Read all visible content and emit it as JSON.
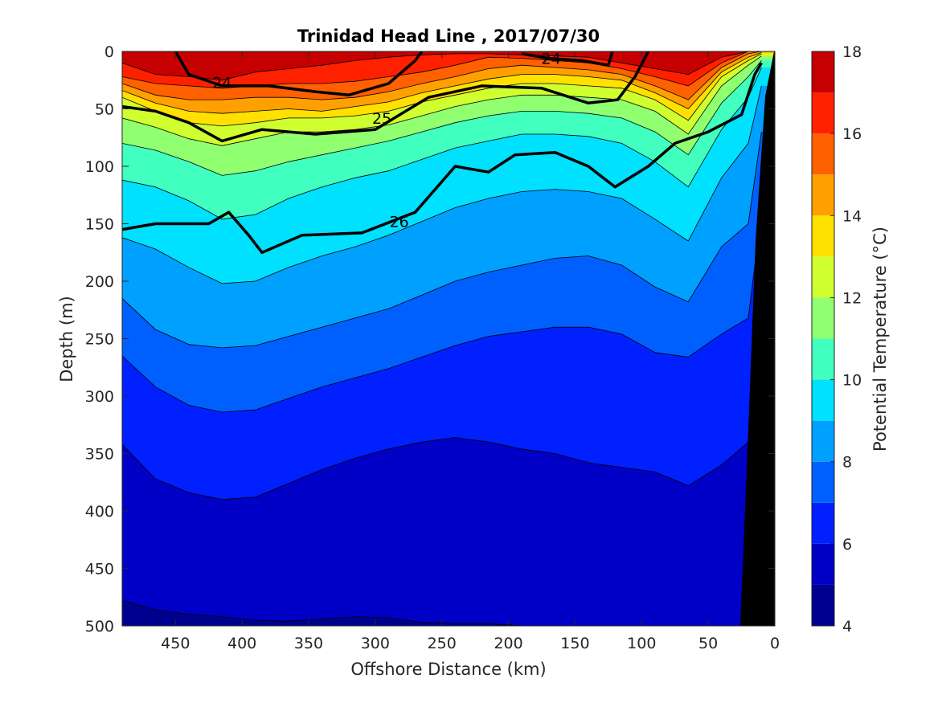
{
  "chart_data": {
    "type": "contour",
    "title": "Trinidad Head Line , 2017/07/30",
    "xlabel": "Offshore Distance (km)",
    "ylabel": "Depth (m)",
    "colorbar_label": "Potential Temperature (°C)",
    "x_reversed": true,
    "y_reversed": true,
    "xlim": [
      0,
      490
    ],
    "ylim": [
      0,
      500
    ],
    "x_ticks": [
      "450",
      "400",
      "350",
      "300",
      "250",
      "200",
      "150",
      "100",
      "50",
      "0"
    ],
    "y_ticks": [
      "0",
      "50",
      "100",
      "150",
      "200",
      "250",
      "300",
      "350",
      "400",
      "450",
      "500"
    ],
    "colorbar_ticks": [
      "4",
      "6",
      "8",
      "10",
      "12",
      "14",
      "16",
      "18"
    ],
    "colorbar_range": [
      4,
      18
    ],
    "colormap": [
      "#00008f",
      "#0000c6",
      "#0020ff",
      "#0060ff",
      "#00a0ff",
      "#00e0ff",
      "#40ffbf",
      "#90ff70",
      "#d0ff30",
      "#ffe000",
      "#ffa000",
      "#ff6000",
      "#ff2000",
      "#c60000"
    ],
    "temperature_levels": [
      4,
      5,
      6,
      7,
      8,
      9,
      10,
      11,
      12,
      13,
      14,
      15,
      16,
      17,
      18
    ],
    "temperature_boundaries": [
      {
        "value": 17,
        "depth": [
          10,
          20,
          22,
          25,
          18,
          15,
          12,
          8,
          5,
          3,
          2,
          2,
          3,
          4,
          5,
          10,
          15,
          20,
          5,
          0,
          0
        ]
      },
      {
        "value": 16,
        "depth": [
          22,
          28,
          30,
          32,
          30,
          28,
          28,
          26,
          22,
          18,
          12,
          5,
          6,
          8,
          10,
          15,
          22,
          30,
          10,
          0,
          0
        ]
      },
      {
        "value": 15,
        "depth": [
          28,
          38,
          42,
          42,
          40,
          40,
          42,
          40,
          35,
          28,
          22,
          15,
          12,
          14,
          16,
          20,
          30,
          42,
          14,
          2,
          0
        ]
      },
      {
        "value": 14,
        "depth": [
          34,
          45,
          52,
          54,
          52,
          50,
          52,
          48,
          44,
          36,
          30,
          24,
          20,
          20,
          22,
          25,
          36,
          50,
          18,
          5,
          1
        ]
      },
      {
        "value": 13,
        "depth": [
          40,
          52,
          62,
          65,
          62,
          58,
          58,
          56,
          52,
          44,
          38,
          32,
          28,
          28,
          30,
          32,
          42,
          60,
          22,
          8,
          2
        ]
      },
      {
        "value": 12,
        "depth": [
          58,
          66,
          76,
          82,
          76,
          70,
          70,
          68,
          64,
          56,
          48,
          42,
          38,
          38,
          40,
          42,
          52,
          72,
          30,
          12,
          4
        ]
      },
      {
        "value": 11,
        "depth": [
          80,
          86,
          96,
          108,
          104,
          96,
          90,
          84,
          78,
          70,
          62,
          56,
          52,
          52,
          54,
          58,
          70,
          90,
          45,
          22,
          8
        ]
      },
      {
        "value": 10,
        "depth": [
          112,
          118,
          130,
          146,
          142,
          128,
          118,
          110,
          104,
          94,
          84,
          78,
          72,
          72,
          74,
          80,
          96,
          118,
          68,
          40,
          14
        ]
      },
      {
        "value": 9,
        "depth": [
          162,
          172,
          188,
          202,
          200,
          188,
          178,
          170,
          160,
          148,
          136,
          128,
          122,
          120,
          122,
          128,
          146,
          165,
          110,
          80,
          30
        ]
      },
      {
        "value": 8,
        "depth": [
          215,
          242,
          255,
          258,
          256,
          248,
          240,
          232,
          224,
          212,
          200,
          192,
          186,
          180,
          178,
          186,
          205,
          218,
          170,
          150,
          70
        ]
      },
      {
        "value": 7,
        "depth": [
          265,
          292,
          308,
          314,
          312,
          302,
          292,
          284,
          276,
          266,
          256,
          248,
          244,
          240,
          240,
          246,
          262,
          266,
          246,
          232,
          140
        ]
      },
      {
        "value": 6,
        "depth": [
          342,
          372,
          384,
          390,
          388,
          376,
          364,
          354,
          346,
          340,
          336,
          340,
          346,
          350,
          358,
          362,
          366,
          378,
          360,
          340,
          260
        ]
      },
      {
        "value": 5,
        "depth": [
          478,
          486,
          490,
          492,
          495,
          496,
          494,
          492,
          493,
          497,
          498,
          498,
          500,
          500,
          500,
          500,
          500,
          500,
          500,
          500,
          500
        ]
      }
    ],
    "x_grid_km": [
      490,
      465,
      440,
      415,
      390,
      365,
      340,
      315,
      290,
      265,
      240,
      215,
      190,
      165,
      140,
      115,
      90,
      65,
      40,
      20,
      10
    ],
    "density_contours": [
      {
        "label": "24",
        "bold": true,
        "points": [
          [
            450,
            0
          ],
          [
            440,
            20
          ],
          [
            415,
            30
          ],
          [
            380,
            30
          ],
          [
            345,
            35
          ],
          [
            320,
            38
          ],
          [
            290,
            28
          ],
          [
            270,
            8
          ],
          [
            265,
            0
          ]
        ],
        "label_at": [
          415,
          27
        ]
      },
      {
        "label": "24",
        "bold": true,
        "points": [
          [
            190,
            2
          ],
          [
            170,
            6
          ],
          [
            145,
            8
          ],
          [
            125,
            12
          ],
          [
            122,
            0
          ]
        ],
        "label_at": [
          168,
          6
        ]
      },
      {
        "label": "25",
        "bold": true,
        "points": [
          [
            490,
            48
          ],
          [
            465,
            52
          ],
          [
            440,
            62
          ],
          [
            415,
            78
          ],
          [
            385,
            68
          ],
          [
            345,
            72
          ],
          [
            300,
            68
          ],
          [
            260,
            40
          ],
          [
            220,
            30
          ],
          [
            175,
            32
          ],
          [
            140,
            45
          ],
          [
            118,
            42
          ],
          [
            105,
            22
          ],
          [
            95,
            0
          ]
        ],
        "label_at": [
          295,
          58
        ]
      },
      {
        "label": "26",
        "bold": true,
        "points": [
          [
            490,
            155
          ],
          [
            465,
            150
          ],
          [
            425,
            150
          ],
          [
            410,
            140
          ],
          [
            395,
            160
          ],
          [
            385,
            175
          ],
          [
            355,
            160
          ],
          [
            310,
            158
          ],
          [
            270,
            140
          ],
          [
            240,
            100
          ],
          [
            215,
            105
          ],
          [
            195,
            90
          ],
          [
            165,
            88
          ],
          [
            140,
            100
          ],
          [
            120,
            118
          ],
          [
            95,
            100
          ],
          [
            75,
            80
          ],
          [
            50,
            70
          ],
          [
            25,
            55
          ],
          [
            15,
            20
          ],
          [
            10,
            10
          ]
        ],
        "label_at": [
          282,
          148
        ]
      }
    ],
    "grid": false,
    "legend": "colorbar-right"
  }
}
